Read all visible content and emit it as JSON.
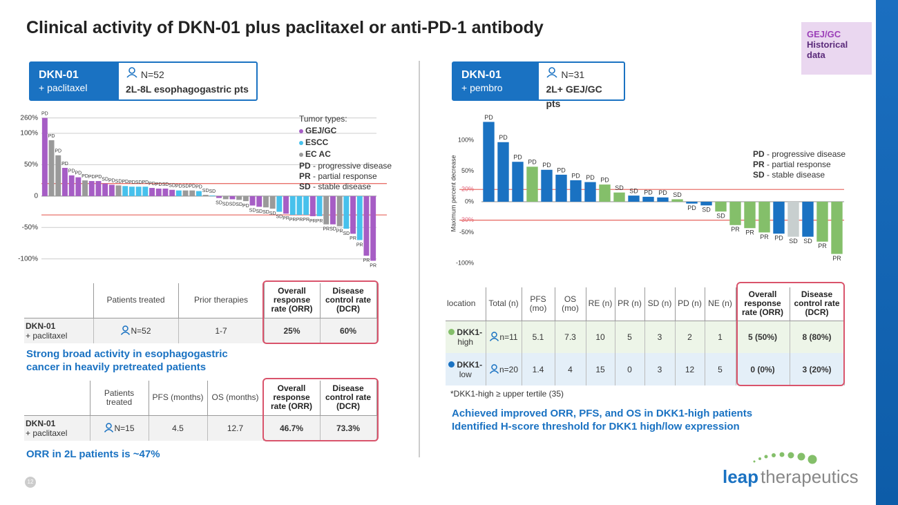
{
  "title": "Clinical activity of DKN-01 plus paclitaxel or anti-PD-1 antibody",
  "badge": {
    "line1": "GEJ/GC",
    "line2": "Historical data"
  },
  "left": {
    "header": {
      "name": "DKN-01",
      "sub": "+ paclitaxel",
      "n": "N=52",
      "pts": "2L-8L esophagogastric pts"
    },
    "table1": {
      "columns": [
        "Patients treated",
        "Prior therapies",
        "Overall response rate (ORR)",
        "Disease control rate (DCR)"
      ],
      "rows": [
        {
          "name": "DKN-01",
          "sub": "+ paclitaxel",
          "cells": [
            "N=52",
            "1-7",
            "25%",
            "60%"
          ]
        }
      ]
    },
    "note1": "Strong broad activity in esophagogastric cancer in heavily pretreated patients",
    "table2": {
      "columns": [
        "Patients treated",
        "PFS (months)",
        "OS (months)",
        "Overall response rate (ORR)",
        "Disease control rate (DCR)"
      ],
      "rows": [
        {
          "name": "DKN-01",
          "sub": "+ paclitaxel",
          "cells": [
            "N=15",
            "4.5",
            "12.7",
            "46.7%",
            "73.3%"
          ]
        }
      ]
    },
    "note2": "ORR in 2L patients is ~47%"
  },
  "right": {
    "header": {
      "name": "DKN-01",
      "sub": "+ pembro",
      "n": "N=31",
      "pts": "2L+ GEJ/GC pts"
    },
    "table": {
      "columns": [
        "location",
        "Total (n)",
        "PFS (mo)",
        "OS (mo)",
        "RE (n)",
        "PR (n)",
        "SD (n)",
        "PD (n)",
        "NE (n)",
        "Overall response rate (ORR)",
        "Disease control rate (DCR)"
      ],
      "rows": [
        {
          "name": "DKK1-",
          "sub": "high",
          "color": "#84bf6a",
          "cells": [
            "n=11",
            "5.1",
            "7.3",
            "10",
            "5",
            "3",
            "2",
            "1",
            "5 (50%)",
            "8 (80%)"
          ]
        },
        {
          "name": "DKK1-",
          "sub": "low",
          "color": "#1a72c2",
          "cells": [
            "n=20",
            "1.4",
            "4",
            "15",
            "0",
            "3",
            "12",
            "5",
            "0 (0%)",
            "3 (20%)"
          ]
        }
      ]
    },
    "footnote": "*DKK1-high ≥ upper tertile (35)",
    "notes": [
      "Achieved improved ORR, PFS, and OS in DKK1-high patients",
      "Identified H-score threshold for DKK1 high/low expression"
    ]
  },
  "page_number": "12",
  "logo": {
    "a": "leap",
    "b": "therapeutics"
  },
  "chart_data": [
    {
      "type": "bar",
      "axis_break": true,
      "grid": true,
      "ylim": [
        -108,
        265
      ],
      "yticks": [
        {
          "value": -100,
          "label": "-100%"
        },
        {
          "value": -50,
          "label": "-50%"
        },
        0,
        {
          "value": 50,
          "label": "50%"
        },
        {
          "value": 100,
          "label": "100%"
        },
        {
          "value": 260,
          "label": "260%"
        }
      ],
      "ref_lines": [
        20,
        -30
      ],
      "ref_color": "#e8706a",
      "values": [
        260,
        89,
        65,
        45,
        33,
        30,
        25,
        24,
        24,
        20,
        18,
        17,
        16,
        15,
        15,
        15,
        13,
        12,
        12,
        10,
        9,
        9,
        9,
        8,
        2,
        1,
        -3,
        -5,
        -5,
        -6,
        -8,
        -15,
        -17,
        -18,
        -20,
        -25,
        -28,
        -30,
        -30,
        -30,
        -32,
        -32,
        -45,
        -45,
        -48,
        -52,
        -60,
        -70,
        -95,
        -103
      ],
      "labels": [
        "PD",
        "PD",
        "PD",
        "PD",
        "PD",
        "PD",
        "PD",
        "PD",
        "PD",
        "SD",
        "PD",
        "SD",
        "PD",
        "PD",
        "SD",
        "PD",
        "PD",
        "PD",
        "SD",
        "SD",
        "PD",
        "SD",
        "PD",
        "PD",
        "SD",
        "SD",
        "SD",
        "SD",
        "SD",
        "SD",
        "PD",
        "SD",
        "SD",
        "SD",
        "SD",
        "SD",
        "PR",
        "PR",
        "PR",
        "PR",
        "PR",
        "PR",
        "PR",
        "SD",
        "PR",
        "SD",
        "PR",
        "PR",
        "PR",
        "PR"
      ],
      "colors": [
        "#a65dc5",
        "#9a9a9a",
        "#9a9a9a",
        "#a65dc5",
        "#a65dc5",
        "#a65dc5",
        "#9a9a9a",
        "#a65dc5",
        "#a65dc5",
        "#a65dc5",
        "#a65dc5",
        "#9a9a9a",
        "#47c1ec",
        "#47c1ec",
        "#47c1ec",
        "#47c1ec",
        "#a65dc5",
        "#a65dc5",
        "#a65dc5",
        "#a65dc5",
        "#47c1ec",
        "#9a9a9a",
        "#9a9a9a",
        "#47c1ec",
        "#9a9a9a",
        "#47c1ec",
        "#a65dc5",
        "#9a9a9a",
        "#a65dc5",
        "#9a9a9a",
        "#9a9a9a",
        "#a65dc5",
        "#a65dc5",
        "#9a9a9a",
        "#9a9a9a",
        "#47c1ec",
        "#a65dc5",
        "#47c1ec",
        "#47c1ec",
        "#47c1ec",
        "#a65dc5",
        "#47c1ec",
        "#9a9a9a",
        "#a65dc5",
        "#9a9a9a",
        "#47c1ec",
        "#a65dc5",
        "#47c1ec",
        "#a65dc5",
        "#a65dc5"
      ],
      "legend_title": "Tumor types:",
      "legend": [
        {
          "name": "GEJ/GC",
          "color": "#a65dc5"
        },
        {
          "name": "ESCC",
          "color": "#47c1ec"
        },
        {
          "name": "EC AC",
          "color": "#9a9a9a"
        }
      ],
      "abbreviations": [
        {
          "abbr": "PD",
          "text": " - progressive disease"
        },
        {
          "abbr": "PR",
          "text": " - partial response"
        },
        {
          "abbr": "SD",
          "text": " - stable disease"
        }
      ]
    },
    {
      "type": "bar",
      "grid": false,
      "ylabel": "Maximum percent decrease",
      "ylim": [
        -108,
        135
      ],
      "yticks": [
        {
          "value": -100,
          "label": "-100%"
        },
        {
          "value": -50,
          "label": "-50%"
        },
        {
          "value": -30,
          "label": "-30%"
        },
        {
          "value": 0,
          "label": "0%"
        },
        {
          "value": 20,
          "label": "20%"
        },
        {
          "value": 50,
          "label": "50%"
        },
        {
          "value": 100,
          "label": "100%"
        }
      ],
      "ref_lines": [
        20,
        -30
      ],
      "ref_color": "#e8706a",
      "values": [
        130,
        97,
        65,
        57,
        52,
        44,
        35,
        32,
        28,
        15,
        10,
        8,
        7,
        4,
        -3,
        -6,
        -16,
        -38,
        -43,
        -50,
        -52,
        -57,
        -57,
        -65,
        -85
      ],
      "labels": [
        "PD",
        "PD",
        "PD",
        "PD",
        "PD",
        "PD",
        "PD",
        "PD",
        "PD",
        "SD",
        "SD",
        "PD",
        "PD",
        "SD",
        "PD",
        "SD",
        "SD",
        "PR",
        "PR",
        "PR",
        "PD",
        "SD",
        "SD",
        "PR",
        "PR"
      ],
      "colors": [
        "#1a72c2",
        "#1a72c2",
        "#1a72c2",
        "#84bf6a",
        "#1a72c2",
        "#1a72c2",
        "#1a72c2",
        "#1a72c2",
        "#84bf6a",
        "#84bf6a",
        "#1a72c2",
        "#1a72c2",
        "#1a72c2",
        "#84bf6a",
        "#1a72c2",
        "#1a72c2",
        "#84bf6a",
        "#84bf6a",
        "#84bf6a",
        "#84bf6a",
        "#1a72c2",
        "#c8cfcf",
        "#1a72c2",
        "#84bf6a",
        "#84bf6a"
      ],
      "abbreviations": [
        {
          "abbr": "PD",
          "text": " - progressive disease"
        },
        {
          "abbr": "PR",
          "text": " - partial response"
        },
        {
          "abbr": "SD",
          "text": " - stable disease"
        }
      ]
    }
  ]
}
